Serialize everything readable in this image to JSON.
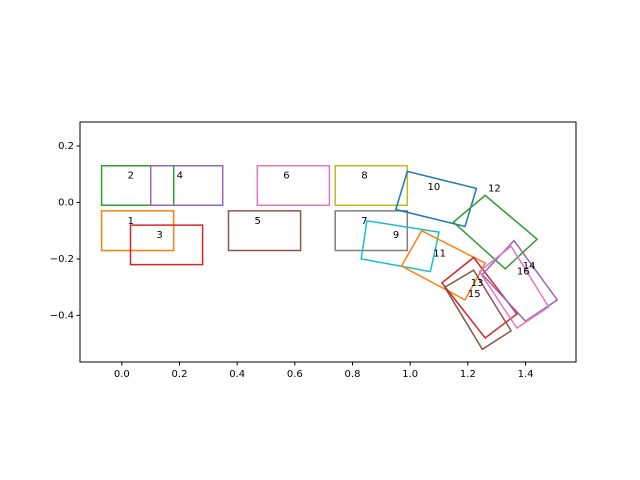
{
  "chart_data": {
    "type": "scatter",
    "title": "",
    "xlabel": "",
    "ylabel": "",
    "xlim": [
      -0.145,
      1.575
    ],
    "ylim": [
      -0.565,
      0.285
    ],
    "grid": false,
    "legend": "none",
    "xticks": [
      {
        "value": 0.0,
        "label": "0.0"
      },
      {
        "value": 0.2,
        "label": "0.2"
      },
      {
        "value": 0.4,
        "label": "0.4"
      },
      {
        "value": 0.6,
        "label": "0.6"
      },
      {
        "value": 0.8,
        "label": "0.8"
      },
      {
        "value": 1.0,
        "label": "1.0"
      },
      {
        "value": 1.2,
        "label": "1.2"
      },
      {
        "value": 1.4,
        "label": "1.4"
      }
    ],
    "yticks": [
      {
        "value": 0.2,
        "label": "0.2"
      },
      {
        "value": 0.0,
        "label": "0.0"
      },
      {
        "value": -0.2,
        "label": "−0.2"
      },
      {
        "value": -0.4,
        "label": "−0.4"
      }
    ],
    "boxes": [
      {
        "label": "1",
        "color": "#ff7f0e",
        "corners": [
          [
            -0.07,
            -0.17
          ],
          [
            0.18,
            -0.17
          ],
          [
            0.18,
            -0.03
          ],
          [
            -0.07,
            -0.03
          ]
        ],
        "label_at": [
          0.02,
          -0.065
        ]
      },
      {
        "label": "2",
        "color": "#2ca02c",
        "corners": [
          [
            -0.07,
            -0.01
          ],
          [
            0.18,
            -0.01
          ],
          [
            0.18,
            0.13
          ],
          [
            -0.07,
            0.13
          ]
        ],
        "label_at": [
          0.02,
          0.095
        ]
      },
      {
        "label": "3",
        "color": "#d62728",
        "corners": [
          [
            0.03,
            -0.22
          ],
          [
            0.28,
            -0.22
          ],
          [
            0.28,
            -0.08
          ],
          [
            0.03,
            -0.08
          ]
        ],
        "label_at": [
          0.12,
          -0.115
        ]
      },
      {
        "label": "4",
        "color": "#9467bd",
        "corners": [
          [
            0.1,
            -0.01
          ],
          [
            0.35,
            -0.01
          ],
          [
            0.35,
            0.13
          ],
          [
            0.1,
            0.13
          ]
        ],
        "label_at": [
          0.19,
          0.095
        ]
      },
      {
        "label": "5",
        "color": "#8c564b",
        "corners": [
          [
            0.37,
            -0.17
          ],
          [
            0.62,
            -0.17
          ],
          [
            0.62,
            -0.03
          ],
          [
            0.37,
            -0.03
          ]
        ],
        "label_at": [
          0.46,
          -0.065
        ]
      },
      {
        "label": "6",
        "color": "#e377c2",
        "corners": [
          [
            0.47,
            -0.01
          ],
          [
            0.72,
            -0.01
          ],
          [
            0.72,
            0.13
          ],
          [
            0.47,
            0.13
          ]
        ],
        "label_at": [
          0.56,
          0.095
        ]
      },
      {
        "label": "7",
        "color": "#7f7f7f",
        "corners": [
          [
            0.74,
            -0.17
          ],
          [
            0.99,
            -0.17
          ],
          [
            0.99,
            -0.03
          ],
          [
            0.74,
            -0.03
          ]
        ],
        "label_at": [
          0.83,
          -0.065
        ]
      },
      {
        "label": "8",
        "color": "#bcbd22",
        "corners": [
          [
            0.74,
            -0.01
          ],
          [
            0.99,
            -0.01
          ],
          [
            0.99,
            0.13
          ],
          [
            0.74,
            0.13
          ]
        ],
        "label_at": [
          0.83,
          0.095
        ]
      },
      {
        "label": "9",
        "color": "#17becf",
        "corners": [
          [
            0.83,
            -0.2
          ],
          [
            1.07,
            -0.245
          ],
          [
            1.1,
            -0.105
          ],
          [
            0.85,
            -0.065
          ]
        ],
        "label_at": [
          0.94,
          -0.115
        ]
      },
      {
        "label": "10",
        "color": "#1f77b4",
        "corners": [
          [
            0.95,
            -0.025
          ],
          [
            1.19,
            -0.085
          ],
          [
            1.23,
            0.05
          ],
          [
            0.99,
            0.11
          ]
        ],
        "label_at": [
          1.06,
          0.055
        ]
      },
      {
        "label": "11",
        "color": "#ff7f0e",
        "corners": [
          [
            0.97,
            -0.225
          ],
          [
            1.19,
            -0.345
          ],
          [
            1.26,
            -0.215
          ],
          [
            1.04,
            -0.1
          ]
        ],
        "label_at": [
          1.08,
          -0.18
        ]
      },
      {
        "label": "12",
        "color": "#2ca02c",
        "corners": [
          [
            1.15,
            -0.07
          ],
          [
            1.33,
            -0.235
          ],
          [
            1.44,
            -0.13
          ],
          [
            1.26,
            0.025
          ]
        ],
        "label_at": [
          1.27,
          0.05
        ]
      },
      {
        "label": "13",
        "color": "#d62728",
        "corners": [
          [
            1.11,
            -0.285
          ],
          [
            1.26,
            -0.48
          ],
          [
            1.37,
            -0.395
          ],
          [
            1.22,
            -0.195
          ]
        ],
        "label_at": [
          1.21,
          -0.285
        ]
      },
      {
        "label": "14",
        "color": "#9467bd",
        "corners": [
          [
            1.25,
            -0.255
          ],
          [
            1.4,
            -0.42
          ],
          [
            1.51,
            -0.345
          ],
          [
            1.36,
            -0.135
          ]
        ],
        "label_at": [
          1.39,
          -0.225
        ]
      },
      {
        "label": "15",
        "color": "#8c564b",
        "corners": [
          [
            1.12,
            -0.3
          ],
          [
            1.25,
            -0.52
          ],
          [
            1.35,
            -0.455
          ],
          [
            1.22,
            -0.24
          ]
        ],
        "label_at": [
          1.2,
          -0.325
        ]
      },
      {
        "label": "16",
        "color": "#e377c2",
        "corners": [
          [
            1.24,
            -0.245
          ],
          [
            1.37,
            -0.445
          ],
          [
            1.48,
            -0.37
          ],
          [
            1.35,
            -0.155
          ]
        ],
        "label_at": [
          1.37,
          -0.245
        ]
      }
    ]
  }
}
